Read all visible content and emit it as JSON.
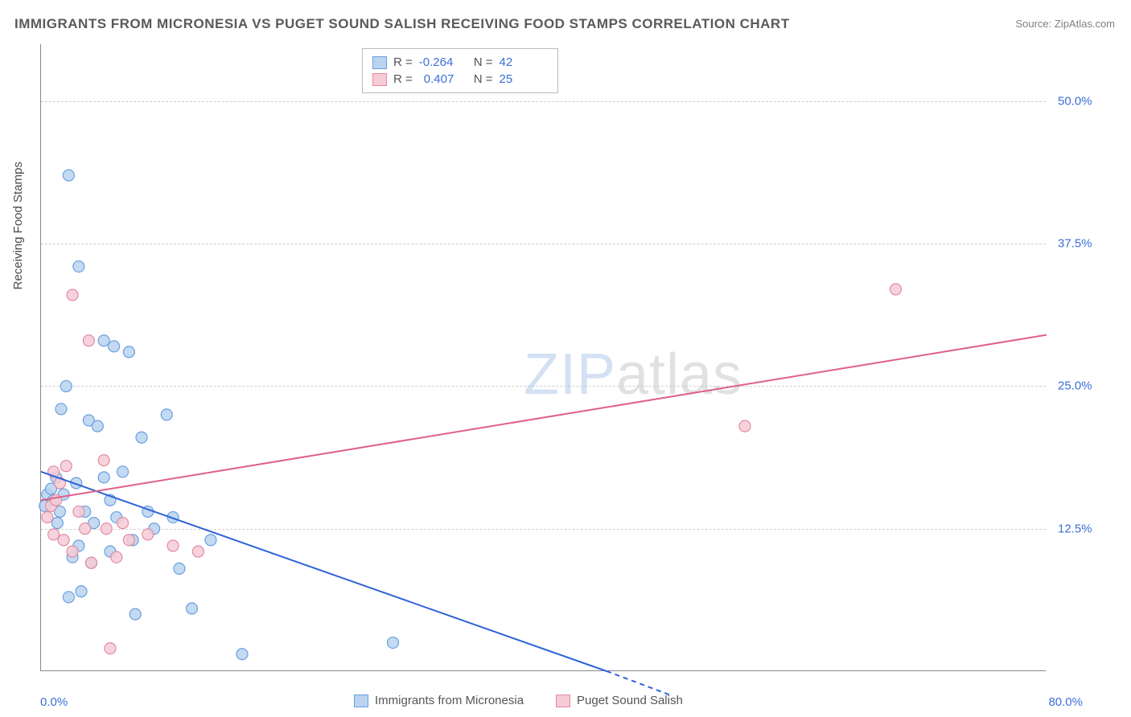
{
  "title": "IMMIGRANTS FROM MICRONESIA VS PUGET SOUND SALISH RECEIVING FOOD STAMPS CORRELATION CHART",
  "source": "Source: ZipAtlas.com",
  "ylabel": "Receiving Food Stamps",
  "watermark_a": "ZIP",
  "watermark_b": "atlas",
  "chart": {
    "type": "scatter",
    "xlim": [
      0,
      80
    ],
    "ylim": [
      0,
      55
    ],
    "xtick_min_label": "0.0%",
    "xtick_max_label": "80.0%",
    "yticks": [
      {
        "v": 12.5,
        "label": "12.5%"
      },
      {
        "v": 25.0,
        "label": "25.0%"
      },
      {
        "v": 37.5,
        "label": "37.5%"
      },
      {
        "v": 50.0,
        "label": "50.0%"
      }
    ],
    "grid_color": "#d0d0d0",
    "axis_color": "#888888",
    "background_color": "#ffffff",
    "tick_label_color": "#3b6fd6",
    "marker_radius": 7,
    "marker_stroke_width": 1.2,
    "line_width": 2,
    "series": [
      {
        "name": "Immigrants from Micronesia",
        "fill": "#b9d3f0",
        "stroke": "#6a9fe0",
        "line_color": "#2f63d6",
        "r": -0.264,
        "n": 42,
        "trend": {
          "x1": 0,
          "y1": 17.5,
          "x2": 45,
          "y2": 0
        },
        "points": [
          [
            0.3,
            14.5
          ],
          [
            0.5,
            15.5
          ],
          [
            0.8,
            16.0
          ],
          [
            1.0,
            15.0
          ],
          [
            1.2,
            17.0
          ],
          [
            1.3,
            13.0
          ],
          [
            1.5,
            14.0
          ],
          [
            1.6,
            23.0
          ],
          [
            1.8,
            15.5
          ],
          [
            2.0,
            25.0
          ],
          [
            2.2,
            43.5
          ],
          [
            2.2,
            6.5
          ],
          [
            2.5,
            10.0
          ],
          [
            2.8,
            16.5
          ],
          [
            3.0,
            35.5
          ],
          [
            3.0,
            11.0
          ],
          [
            3.2,
            7.0
          ],
          [
            3.5,
            14.0
          ],
          [
            3.8,
            22.0
          ],
          [
            4.0,
            9.5
          ],
          [
            4.2,
            13.0
          ],
          [
            4.5,
            21.5
          ],
          [
            5.0,
            29.0
          ],
          [
            5.5,
            10.5
          ],
          [
            5.8,
            28.5
          ],
          [
            5.5,
            15.0
          ],
          [
            6.0,
            13.5
          ],
          [
            6.5,
            17.5
          ],
          [
            7.0,
            28.0
          ],
          [
            7.3,
            11.5
          ],
          [
            7.5,
            5.0
          ],
          [
            8.0,
            20.5
          ],
          [
            8.5,
            14.0
          ],
          [
            9.0,
            12.5
          ],
          [
            10.0,
            22.5
          ],
          [
            10.5,
            13.5
          ],
          [
            11.0,
            9.0
          ],
          [
            12.0,
            5.5
          ],
          [
            13.5,
            11.5
          ],
          [
            16.0,
            1.5
          ],
          [
            28.0,
            2.5
          ],
          [
            5.0,
            17.0
          ]
        ]
      },
      {
        "name": "Puget Sound Salish",
        "fill": "#f5cbd6",
        "stroke": "#e28aa4",
        "line_color": "#e05f8a",
        "r": 0.407,
        "n": 25,
        "trend": {
          "x1": 0,
          "y1": 15.0,
          "x2": 80,
          "y2": 29.5
        },
        "points": [
          [
            0.5,
            13.5
          ],
          [
            0.8,
            14.5
          ],
          [
            1.0,
            17.5
          ],
          [
            1.0,
            12.0
          ],
          [
            1.2,
            15.0
          ],
          [
            1.5,
            16.5
          ],
          [
            1.8,
            11.5
          ],
          [
            2.0,
            18.0
          ],
          [
            2.5,
            10.5
          ],
          [
            2.5,
            33.0
          ],
          [
            3.0,
            14.0
          ],
          [
            3.5,
            12.5
          ],
          [
            3.8,
            29.0
          ],
          [
            4.0,
            9.5
          ],
          [
            5.0,
            18.5
          ],
          [
            5.2,
            12.5
          ],
          [
            5.5,
            2.0
          ],
          [
            6.0,
            10.0
          ],
          [
            6.5,
            13.0
          ],
          [
            7.0,
            11.5
          ],
          [
            8.5,
            12.0
          ],
          [
            10.5,
            11.0
          ],
          [
            12.5,
            10.5
          ],
          [
            56.0,
            21.5
          ],
          [
            68.0,
            33.5
          ]
        ]
      }
    ],
    "corr_legend": {
      "label_r": "R =",
      "label_n": "N ="
    },
    "series_legend_labels": [
      "Immigrants from Micronesia",
      "Puget Sound Salish"
    ]
  }
}
